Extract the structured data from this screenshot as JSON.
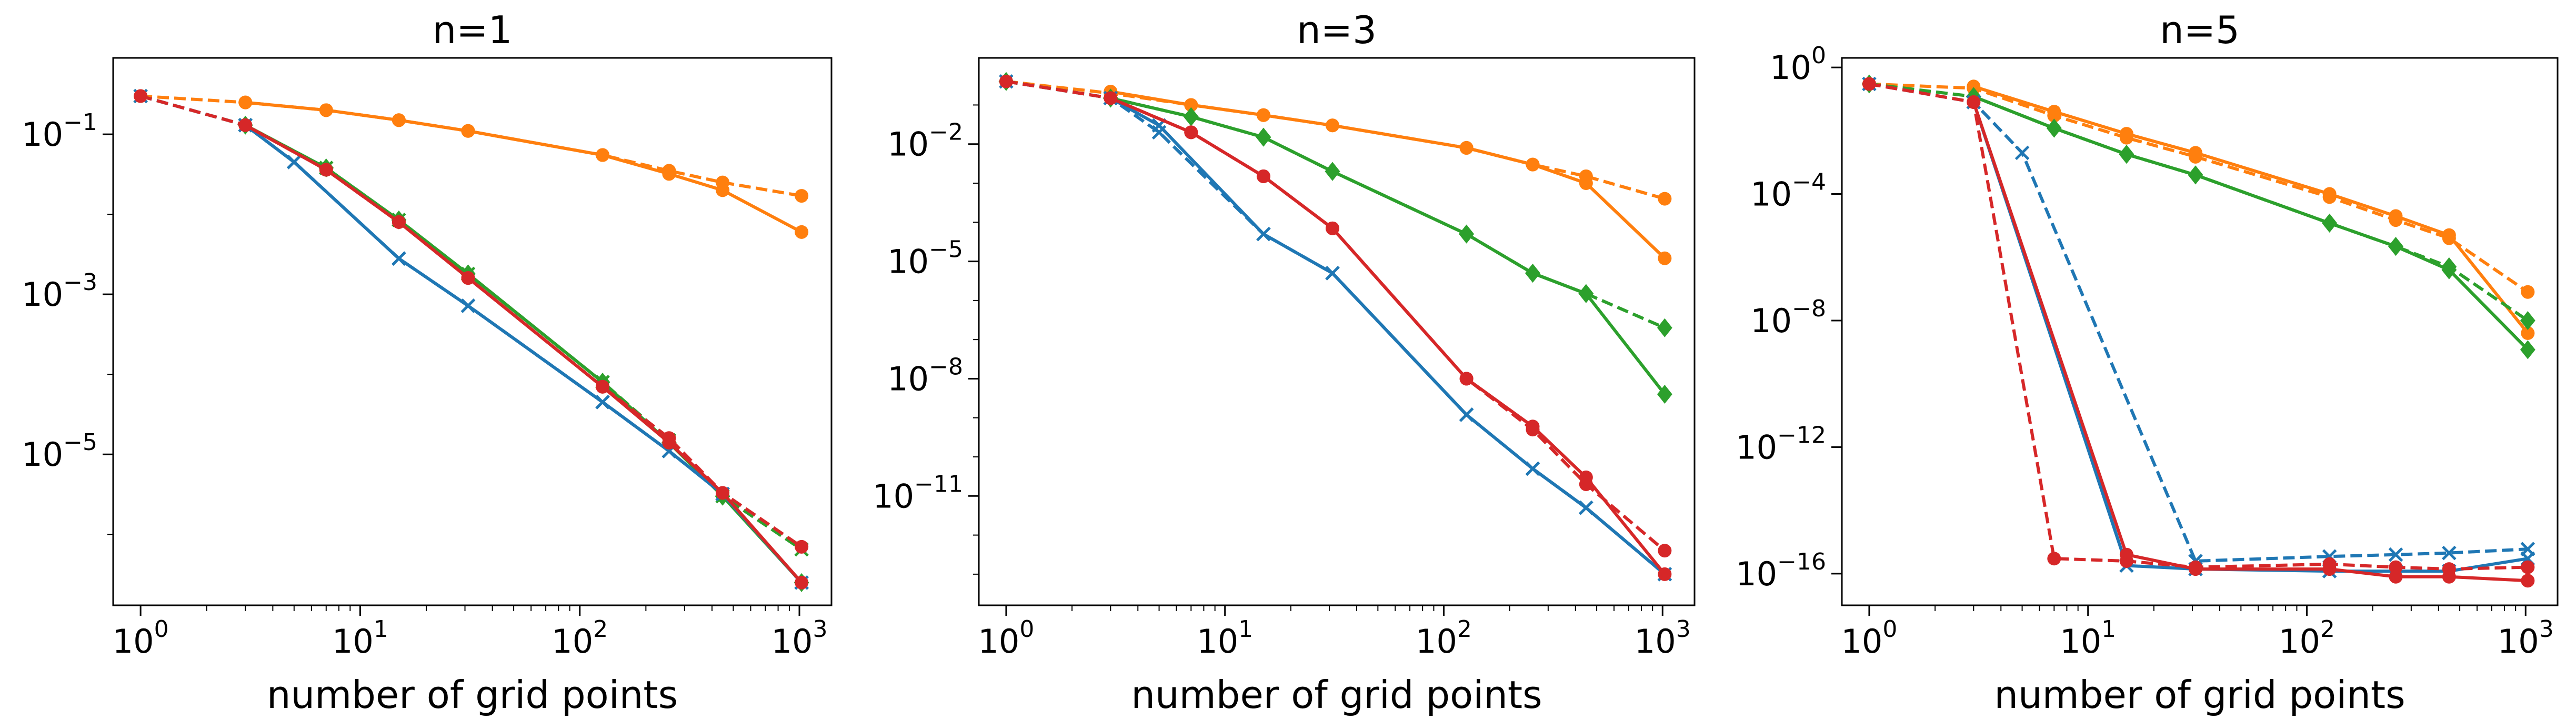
{
  "chart_data": [
    {
      "type": "line",
      "title": "n=1",
      "xlabel": "number of grid points",
      "ylabel": "",
      "xscale": "log",
      "yscale": "log",
      "xlim": [
        0.75,
        1400
      ],
      "ylim": [
        1.3e-07,
        0.9
      ],
      "xticks": [
        {
          "v": 1,
          "label": "10",
          "exp": "0"
        },
        {
          "v": 10,
          "label": "10",
          "exp": "1"
        },
        {
          "v": 100,
          "label": "10",
          "exp": "2"
        },
        {
          "v": 1000,
          "label": "10",
          "exp": "3"
        }
      ],
      "yticks": [
        {
          "v": 0.1,
          "label": "10",
          "exp": "−1"
        },
        {
          "v": 0.001,
          "label": "10",
          "exp": "−3"
        },
        {
          "v": 1e-05,
          "label": "10",
          "exp": "−5"
        }
      ],
      "yminor": [
        0.01,
        0.0001,
        1e-06
      ],
      "grid": false,
      "series": [
        {
          "color": "#ff7f0e",
          "dash": true,
          "marker": "circle",
          "x": [
            1,
            3,
            7,
            15,
            31,
            127,
            255,
            447,
            1023
          ],
          "y": [
            0.3,
            0.25,
            0.2,
            0.15,
            0.11,
            0.055,
            0.035,
            0.025,
            0.017
          ]
        },
        {
          "color": "#ff7f0e",
          "dash": false,
          "marker": "circle",
          "x": [
            3,
            7,
            15,
            31,
            127,
            255,
            447,
            1023
          ],
          "y": [
            0.25,
            0.2,
            0.15,
            0.11,
            0.055,
            0.032,
            0.02,
            0.006
          ]
        },
        {
          "color": "#2ca02c",
          "dash": true,
          "marker": "x",
          "x": [
            1,
            3,
            7,
            15,
            31,
            127,
            255,
            447,
            1023
          ],
          "y": [
            0.3,
            0.13,
            0.038,
            0.0085,
            0.0018,
            8e-05,
            1.5e-05,
            3e-06,
            6.5e-07
          ]
        },
        {
          "color": "#2ca02c",
          "dash": false,
          "marker": "diamond",
          "x": [
            3,
            7,
            15,
            31,
            127,
            255,
            447,
            1023
          ],
          "y": [
            0.13,
            0.038,
            0.0085,
            0.0018,
            8e-05,
            1.4e-05,
            3e-06,
            2.5e-07
          ]
        },
        {
          "color": "#1f77b4",
          "dash": true,
          "marker": "x",
          "x": [
            1,
            3,
            5,
            15,
            31,
            127,
            255,
            447,
            1023
          ],
          "y": [
            0.3,
            0.13,
            0.045,
            0.0028,
            0.00072,
            4.5e-05,
            1.1e-05,
            3.2e-06,
            2.5e-07
          ]
        },
        {
          "color": "#1f77b4",
          "dash": false,
          "marker": "x",
          "x": [
            3,
            5,
            15,
            31,
            127,
            255,
            447,
            1023
          ],
          "y": [
            0.13,
            0.045,
            0.0028,
            0.00072,
            4.5e-05,
            1.1e-05,
            3.2e-06,
            2.5e-07
          ]
        },
        {
          "color": "#d62728",
          "dash": true,
          "marker": "circle",
          "x": [
            1,
            3,
            7,
            15,
            31,
            127,
            255,
            447,
            1023
          ],
          "y": [
            0.3,
            0.13,
            0.036,
            0.008,
            0.0016,
            7e-05,
            1.6e-05,
            3.3e-06,
            7e-07
          ]
        },
        {
          "color": "#d62728",
          "dash": false,
          "marker": "circle",
          "x": [
            3,
            7,
            15,
            31,
            127,
            255,
            447,
            1023
          ],
          "y": [
            0.13,
            0.036,
            0.008,
            0.0016,
            7e-05,
            1.4e-05,
            3.3e-06,
            2.5e-07
          ]
        }
      ]
    },
    {
      "type": "line",
      "title": "n=3",
      "xlabel": "number of grid points",
      "ylabel": "",
      "xscale": "log",
      "yscale": "log",
      "xlim": [
        0.75,
        1400
      ],
      "ylim": [
        1.6e-14,
        1.6
      ],
      "xticks": [
        {
          "v": 1,
          "label": "10",
          "exp": "0"
        },
        {
          "v": 10,
          "label": "10",
          "exp": "1"
        },
        {
          "v": 100,
          "label": "10",
          "exp": "2"
        },
        {
          "v": 1000,
          "label": "10",
          "exp": "3"
        }
      ],
      "yticks": [
        {
          "v": 0.01,
          "label": "10",
          "exp": "−2"
        },
        {
          "v": 1e-05,
          "label": "10",
          "exp": "−5"
        },
        {
          "v": 1e-08,
          "label": "10",
          "exp": "−8"
        },
        {
          "v": 1e-11,
          "label": "10",
          "exp": "−11"
        }
      ],
      "yminor": [
        0.1,
        0.001,
        0.0001,
        1e-06,
        1e-07,
        1e-09,
        1e-10,
        1e-12,
        1e-13
      ],
      "grid": false,
      "series": [
        {
          "color": "#ff7f0e",
          "dash": true,
          "marker": "circle",
          "x": [
            1,
            3,
            7,
            15,
            31,
            127,
            255,
            447,
            1023
          ],
          "y": [
            0.4,
            0.2,
            0.1,
            0.055,
            0.03,
            0.008,
            0.003,
            0.0015,
            0.0004
          ]
        },
        {
          "color": "#ff7f0e",
          "dash": false,
          "marker": "circle",
          "x": [
            3,
            7,
            15,
            31,
            127,
            255,
            447,
            1023
          ],
          "y": [
            0.22,
            0.1,
            0.055,
            0.03,
            0.008,
            0.003,
            0.001,
            1.2e-05
          ]
        },
        {
          "color": "#2ca02c",
          "dash": true,
          "marker": "diamond",
          "x": [
            1,
            3,
            7,
            15,
            31,
            127,
            255,
            447,
            1023
          ],
          "y": [
            0.4,
            0.15,
            0.05,
            0.015,
            0.002,
            5e-05,
            5e-06,
            1.5e-06,
            2e-07
          ]
        },
        {
          "color": "#2ca02c",
          "dash": false,
          "marker": "diamond",
          "x": [
            3,
            7,
            15,
            31,
            127,
            255,
            447,
            1023
          ],
          "y": [
            0.15,
            0.05,
            0.015,
            0.002,
            5e-05,
            5e-06,
            1.5e-06,
            4e-09
          ]
        },
        {
          "color": "#1f77b4",
          "dash": true,
          "marker": "x",
          "x": [
            1,
            3,
            5,
            15,
            31,
            127,
            255,
            447,
            1023
          ],
          "y": [
            0.4,
            0.15,
            0.02,
            5e-05,
            5e-06,
            1.2e-09,
            5e-11,
            5e-12,
            1e-13
          ]
        },
        {
          "color": "#1f77b4",
          "dash": false,
          "marker": "x",
          "x": [
            3,
            5,
            15,
            31,
            127,
            255,
            447,
            1023
          ],
          "y": [
            0.15,
            0.03,
            5e-05,
            5e-06,
            1.2e-09,
            5e-11,
            5e-12,
            1e-13
          ]
        },
        {
          "color": "#d62728",
          "dash": true,
          "marker": "circle",
          "x": [
            1,
            3,
            7,
            15,
            31,
            127,
            255,
            447,
            1023
          ],
          "y": [
            0.4,
            0.15,
            0.02,
            0.0015,
            7e-05,
            1e-08,
            5e-10,
            2e-11,
            4e-13
          ]
        },
        {
          "color": "#d62728",
          "dash": false,
          "marker": "circle",
          "x": [
            3,
            7,
            15,
            31,
            127,
            255,
            447,
            1023
          ],
          "y": [
            0.15,
            0.02,
            0.0015,
            7e-05,
            1e-08,
            6e-10,
            3e-11,
            1e-13
          ]
        }
      ]
    },
    {
      "type": "line",
      "title": "n=5",
      "xlabel": "number of grid points",
      "ylabel": "",
      "xscale": "log",
      "yscale": "log",
      "xlim": [
        0.75,
        1400
      ],
      "ylim": [
        1e-17,
        2
      ],
      "xticks": [
        {
          "v": 1,
          "label": "10",
          "exp": "0"
        },
        {
          "v": 10,
          "label": "10",
          "exp": "1"
        },
        {
          "v": 100,
          "label": "10",
          "exp": "2"
        },
        {
          "v": 1000,
          "label": "10",
          "exp": "3"
        }
      ],
      "yticks": [
        {
          "v": 1,
          "label": "10",
          "exp": "0"
        },
        {
          "v": 0.0001,
          "label": "10",
          "exp": "−4"
        },
        {
          "v": 1e-08,
          "label": "10",
          "exp": "−8"
        },
        {
          "v": 1e-12,
          "label": "10",
          "exp": "−12"
        },
        {
          "v": 1e-16,
          "label": "10",
          "exp": "−16"
        }
      ],
      "yminor": [],
      "grid": false,
      "series": [
        {
          "color": "#ff7f0e",
          "dash": true,
          "marker": "circle",
          "x": [
            1,
            3,
            7,
            15,
            31,
            127,
            255,
            447,
            1023
          ],
          "y": [
            0.3,
            0.22,
            0.03,
            0.006,
            0.0015,
            8e-05,
            1.5e-05,
            4e-06,
            8e-08
          ]
        },
        {
          "color": "#ff7f0e",
          "dash": false,
          "marker": "circle",
          "x": [
            3,
            7,
            15,
            31,
            127,
            255,
            447,
            1023
          ],
          "y": [
            0.25,
            0.04,
            0.008,
            0.002,
            0.0001,
            2e-05,
            5e-06,
            4e-09
          ]
        },
        {
          "color": "#2ca02c",
          "dash": true,
          "marker": "diamond",
          "x": [
            1,
            3,
            7,
            15,
            31,
            127,
            255,
            447,
            1023
          ],
          "y": [
            0.3,
            0.12,
            0.012,
            0.0018,
            0.0004,
            1.2e-05,
            2.2e-06,
            5e-07,
            1e-08
          ]
        },
        {
          "color": "#2ca02c",
          "dash": false,
          "marker": "diamond",
          "x": [
            3,
            7,
            15,
            31,
            127,
            255,
            447,
            1023
          ],
          "y": [
            0.12,
            0.012,
            0.0018,
            0.0004,
            1.2e-05,
            2.2e-06,
            4e-07,
            1.2e-09
          ]
        },
        {
          "color": "#1f77b4",
          "dash": true,
          "marker": "x",
          "x": [
            1,
            3,
            5,
            31,
            127,
            255,
            447,
            1023
          ],
          "y": [
            0.3,
            0.08,
            0.002,
            2.5e-16,
            3.5e-16,
            4e-16,
            4.5e-16,
            6e-16
          ]
        },
        {
          "color": "#1f77b4",
          "dash": false,
          "marker": "x",
          "x": [
            3,
            15,
            31,
            127,
            255,
            447,
            1023
          ],
          "y": [
            0.08,
            1.8e-16,
            1.4e-16,
            1.2e-16,
            1.2e-16,
            1.2e-16,
            3e-16
          ]
        },
        {
          "color": "#d62728",
          "dash": true,
          "marker": "circle",
          "x": [
            1,
            3,
            7,
            15,
            31,
            127,
            255,
            447,
            1023
          ],
          "y": [
            0.3,
            0.08,
            3e-16,
            2.5e-16,
            1.6e-16,
            2e-16,
            1.6e-16,
            1.4e-16,
            1.6e-16
          ]
        },
        {
          "color": "#d62728",
          "dash": false,
          "marker": "circle",
          "x": [
            3,
            15,
            31,
            127,
            255,
            447,
            1023
          ],
          "y": [
            0.08,
            4e-16,
            1.4e-16,
            1.4e-16,
            8e-17,
            8e-17,
            6e-17
          ]
        }
      ]
    }
  ]
}
